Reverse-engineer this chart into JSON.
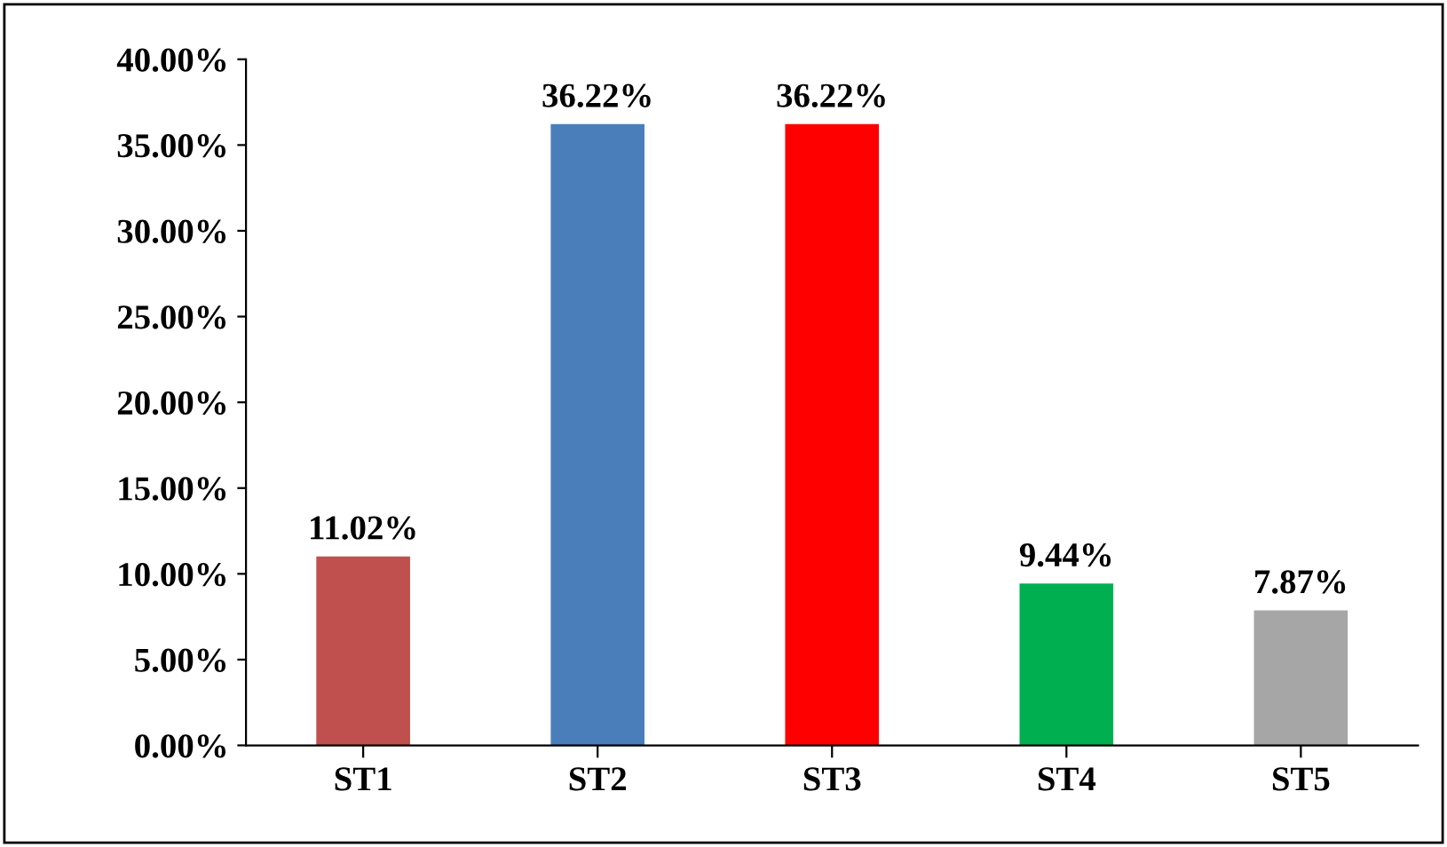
{
  "chart_data": {
    "type": "bar",
    "categories": [
      "ST1",
      "ST2",
      "ST3",
      "ST4",
      "ST5"
    ],
    "values": [
      11.02,
      36.22,
      36.22,
      9.44,
      7.87
    ],
    "colors": [
      "#c0504d",
      "#4a7ebb",
      "#ff0000",
      "#00b050",
      "#a6a6a6"
    ],
    "value_labels": [
      "11.02%",
      "36.22%",
      "36.22%",
      "9.44%",
      "7.87%"
    ],
    "ylim": [
      0,
      40
    ],
    "yticks": [
      {
        "value": 0,
        "label": "0.00%"
      },
      {
        "value": 5,
        "label": "5.00%"
      },
      {
        "value": 10,
        "label": "10.00%"
      },
      {
        "value": 15,
        "label": "15.00%"
      },
      {
        "value": 20,
        "label": "20.00%"
      },
      {
        "value": 25,
        "label": "25.00%"
      },
      {
        "value": 30,
        "label": "30.00%"
      },
      {
        "value": 35,
        "label": "35.00%"
      },
      {
        "value": 40,
        "label": "40.00%"
      }
    ],
    "grid": false,
    "legend": false
  }
}
